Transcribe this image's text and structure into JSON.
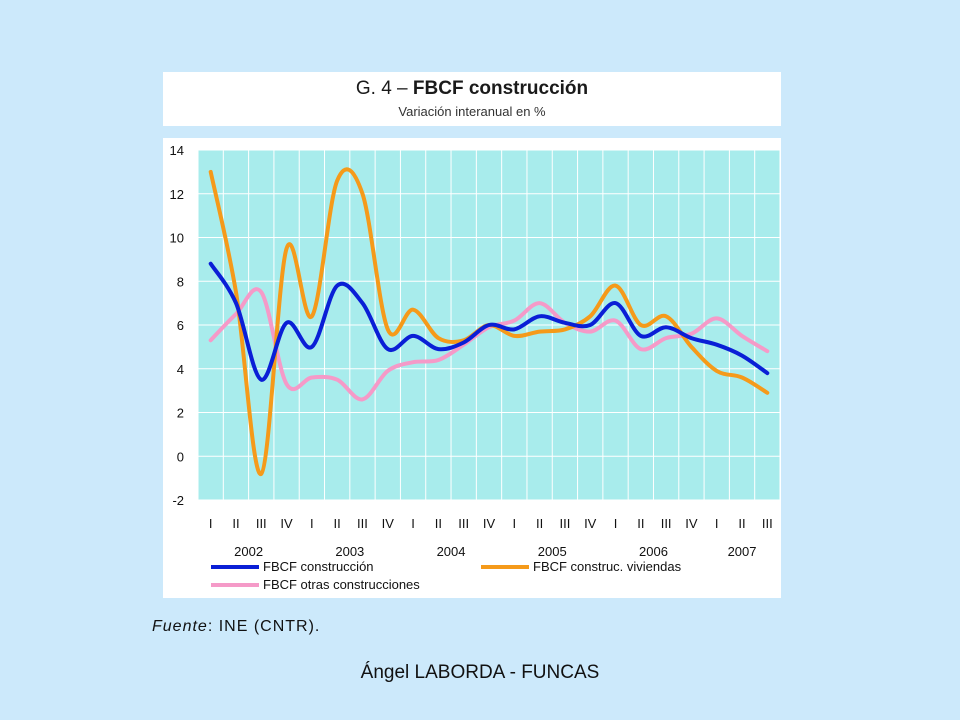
{
  "header": {
    "title_prefix": "G. 4 – ",
    "title_bold": "FBCF construcción",
    "subtitle": "Variación interanual en %"
  },
  "source": {
    "label": "Fuente",
    "text": ": INE (CNTR)."
  },
  "footer": {
    "author": "Ángel LABORDA - FUNCAS"
  },
  "chart_data": {
    "type": "line",
    "title": "G. 4 – FBCF construcción",
    "subtitle": "Variación interanual en %",
    "ylim": [
      -2,
      14
    ],
    "yticks": [
      -2,
      0,
      2,
      4,
      6,
      8,
      10,
      12,
      14
    ],
    "quarters": [
      "I",
      "II",
      "III",
      "IV",
      "I",
      "II",
      "III",
      "IV",
      "I",
      "II",
      "III",
      "IV",
      "I",
      "II",
      "III",
      "IV",
      "I",
      "II",
      "III",
      "IV",
      "I",
      "II",
      "III"
    ],
    "years": [
      "2002",
      "2003",
      "2004",
      "2005",
      "2006",
      "2007"
    ],
    "grid": true,
    "plot_background": "#a8ecec",
    "legend_position": "bottom",
    "series": [
      {
        "name": "FBCF construcción",
        "color": "#0a1fd6",
        "values": [
          8.8,
          7.0,
          3.5,
          6.1,
          5.0,
          7.8,
          7.0,
          4.9,
          5.5,
          4.9,
          5.2,
          6.0,
          5.8,
          6.4,
          6.1,
          6.0,
          7.0,
          5.5,
          5.9,
          5.4,
          5.1,
          4.6,
          3.8
        ]
      },
      {
        "name": "FBCF construc. viviendas",
        "color": "#f59a1a",
        "values": [
          13.0,
          7.5,
          -0.8,
          9.5,
          6.4,
          12.6,
          12.0,
          5.8,
          6.7,
          5.4,
          5.3,
          6.0,
          5.5,
          5.7,
          5.8,
          6.4,
          7.8,
          6.0,
          6.4,
          5.0,
          3.9,
          3.6,
          2.9
        ]
      },
      {
        "name": "FBCF otras construcciones",
        "color": "#f59ac8",
        "values": [
          5.3,
          6.5,
          7.5,
          3.3,
          3.6,
          3.5,
          2.6,
          3.9,
          4.3,
          4.4,
          5.1,
          5.9,
          6.2,
          7.0,
          6.1,
          5.7,
          6.2,
          4.9,
          5.4,
          5.6,
          6.3,
          5.5,
          4.8
        ]
      }
    ]
  }
}
